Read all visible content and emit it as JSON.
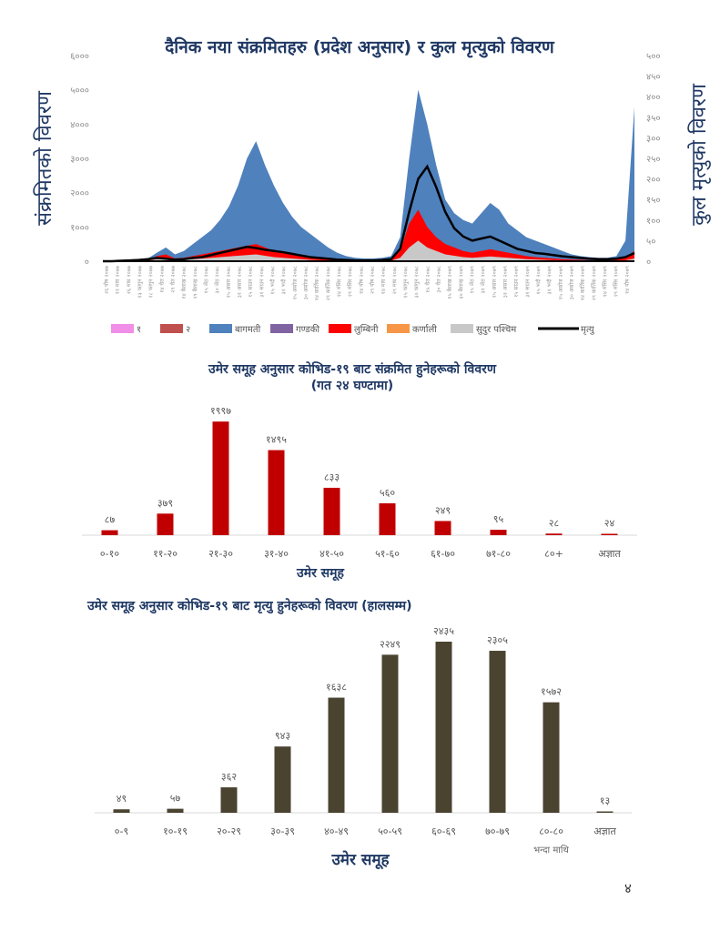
{
  "page_number": "४",
  "chart_data": [
    {
      "type": "area",
      "title": "दैनिक नया संक्रमितहरु (प्रदेश अनुसार) र कुल मृत्युको विवरण",
      "ylabel": "संक्रमितको विवरण",
      "y2label": "कुल मृत्युको विवरण",
      "ylim": [
        0,
        6000
      ],
      "y2lim": [
        0,
        500
      ],
      "yticks": [
        "०",
        "१०००",
        "२०००",
        "३०००",
        "४०००",
        "५०००",
        "६०००"
      ],
      "y2ticks": [
        "०",
        "५०",
        "१००",
        "१५०",
        "२००",
        "२५०",
        "३००",
        "३५०",
        "४००",
        "४५०",
        "५००"
      ],
      "xticks": [
        "२६ पौष २०७७",
        "११ माघ २०७७",
        "२६ माघ २०७७",
        "१३ फागुन २०७७",
        "२८ फागुन २०७७",
        "१४ चैत २०७७",
        "२९ चैत २०७७",
        "१४ बैशाख २०७८",
        "२९ बैशाख २०७८",
        "१५ जेठ २०७८",
        "३० जेठ २०७८",
        "१५ असार २०७८",
        "३१ असार २०७८",
        "१५ साउन २०७८",
        "३१ साउन २०७८",
        "१५ भदौ २०७८",
        "३१ भदौ २०७८",
        "१५ असोज २०७८",
        "३० असोज २०७८",
        "१४ कार्तिक २०७८",
        "२९ कार्तिक २०७८",
        "१४ मंसिर २०७८",
        "२९ मंसिर २०७८",
        "१४ पौष २०७८",
        "२९ पौष २०७८",
        "१४ माघ २०७८",
        "२९ माघ २०७८",
        "१५ फागुन २०७८",
        "३० फागुन २०७८",
        "१५ चैत २०७८",
        "३० चैत २०७८",
        "१५ बैशाख २०७९",
        "३० बैशाख २०७९",
        "१५ जेठ २०७९",
        "३१ जेठ २०७९",
        "१५ असार २०७९",
        "३१ असार २०७९",
        "१५ साउन २०७९",
        "३१ साउन २०७९",
        "१५ भदौ २०७९",
        "३१ भदौ २०७९",
        "१५ असोज २०७९",
        "३० असोज २०७९",
        "१४ कार्तिक २०७९",
        "२९ कार्तिक २०७९",
        "१४ मंसिर २०७९",
        "२९ मंसिर २०७९",
        "१४ पौष २०७९"
      ],
      "legend": [
        {
          "name": "१",
          "color": "#f08ee8"
        },
        {
          "name": "२",
          "color": "#c0504d"
        },
        {
          "name": "बागमती",
          "color": "#4f81bd"
        },
        {
          "name": "गण्डकी",
          "color": "#8064a2"
        },
        {
          "name": "लुम्बिनी",
          "color": "#ff0000"
        },
        {
          "name": "कर्णाली",
          "color": "#f79646"
        },
        {
          "name": "सुदुर पश्चिम",
          "color": "#c8c8c8"
        },
        {
          "name": "मृत्यु",
          "color": "#000000"
        }
      ],
      "series": {
        "total_cases": [
          0,
          0,
          10,
          20,
          40,
          80,
          250,
          400,
          200,
          300,
          500,
          700,
          900,
          1200,
          1600,
          2200,
          3000,
          3500,
          2800,
          2200,
          1700,
          1300,
          1000,
          800,
          600,
          400,
          250,
          150,
          100,
          80,
          80,
          100,
          150,
          700,
          3000,
          5000,
          4000,
          2800,
          1800,
          1400,
          1200,
          1100,
          1400,
          1700,
          1500,
          1100,
          900,
          700,
          600,
          500,
          400,
          300,
          200,
          150,
          120,
          100,
          100,
          150,
          600,
          4500
        ],
        "lumbini_sudur": [
          0,
          0,
          5,
          10,
          20,
          40,
          150,
          200,
          80,
          100,
          150,
          200,
          250,
          300,
          350,
          400,
          450,
          500,
          400,
          300,
          250,
          200,
          150,
          100,
          80,
          60,
          40,
          30,
          20,
          15,
          15,
          20,
          40,
          300,
          1100,
          1500,
          1000,
          700,
          500,
          400,
          300,
          250,
          300,
          350,
          300,
          250,
          200,
          150,
          120,
          100,
          80,
          60,
          50,
          40,
          30,
          30,
          30,
          40,
          100,
          300
        ],
        "sudur": [
          0,
          0,
          2,
          5,
          10,
          20,
          60,
          80,
          30,
          40,
          60,
          80,
          100,
          120,
          140,
          160,
          180,
          200,
          160,
          120,
          100,
          80,
          60,
          40,
          30,
          20,
          15,
          10,
          8,
          6,
          6,
          8,
          15,
          100,
          400,
          600,
          400,
          300,
          200,
          160,
          120,
          100,
          120,
          140,
          120,
          100,
          80,
          60,
          50,
          40,
          30,
          25,
          20,
          15,
          12,
          12,
          12,
          15,
          30,
          80
        ],
        "deaths": [
          0,
          0,
          1,
          2,
          3,
          5,
          8,
          6,
          4,
          5,
          8,
          10,
          15,
          20,
          25,
          30,
          35,
          32,
          28,
          25,
          22,
          18,
          14,
          10,
          8,
          6,
          4,
          3,
          2,
          2,
          2,
          3,
          5,
          30,
          120,
          200,
          230,
          180,
          120,
          80,
          60,
          50,
          55,
          60,
          50,
          40,
          30,
          25,
          20,
          18,
          15,
          12,
          10,
          8,
          6,
          5,
          5,
          6,
          10,
          20
        ]
      }
    },
    {
      "type": "bar",
      "title": "उमेर समूह अनुसार कोभिड-१९ बाट संक्रमित हुनेहरूको विवरण",
      "subtitle": "(गत २४ घण्टामा)",
      "xlabel": "उमेर समूह",
      "categories": [
        "०-१०",
        "११-२०",
        "२१-३०",
        "३१-४०",
        "४१-५०",
        "५१-६०",
        "६१-७०",
        "७१-८०",
        "८०+",
        "अज्ञात"
      ],
      "values": [
        87,
        379,
        1997,
        1495,
        833,
        560,
        249,
        95,
        28,
        24
      ],
      "value_labels": [
        "८७",
        "३७९",
        "१९९७",
        "१४९५",
        "८३३",
        "५६०",
        "२४९",
        "९५",
        "२८",
        "२४"
      ],
      "color": "#c00000",
      "ylim": [
        0,
        2000
      ]
    },
    {
      "type": "bar",
      "title": "उमेर समूह अनुसार कोभिड-१९ बाट मृत्यु हुनेहरूको विवरण (हालसम्म)",
      "xlabel": "उमेर समूह",
      "categories": [
        "०-९",
        "१०-१९",
        "२०-२९",
        "३०-३९",
        "४०-४९",
        "५०-५९",
        "६०-६९",
        "७०-७९",
        "८०-८०",
        "अज्ञात"
      ],
      "category_sublabels": [
        "",
        "",
        "",
        "",
        "",
        "",
        "",
        "",
        "भन्दा माथि",
        ""
      ],
      "values": [
        49,
        57,
        362,
        943,
        1638,
        2249,
        2435,
        2305,
        1572,
        13
      ],
      "value_labels": [
        "४९",
        "५७",
        "३६२",
        "९४३",
        "१६३८",
        "२२४९",
        "२४३५",
        "२३०५",
        "१५७२",
        "१३"
      ],
      "color": "#4a4330",
      "ylim": [
        0,
        2435
      ]
    }
  ]
}
